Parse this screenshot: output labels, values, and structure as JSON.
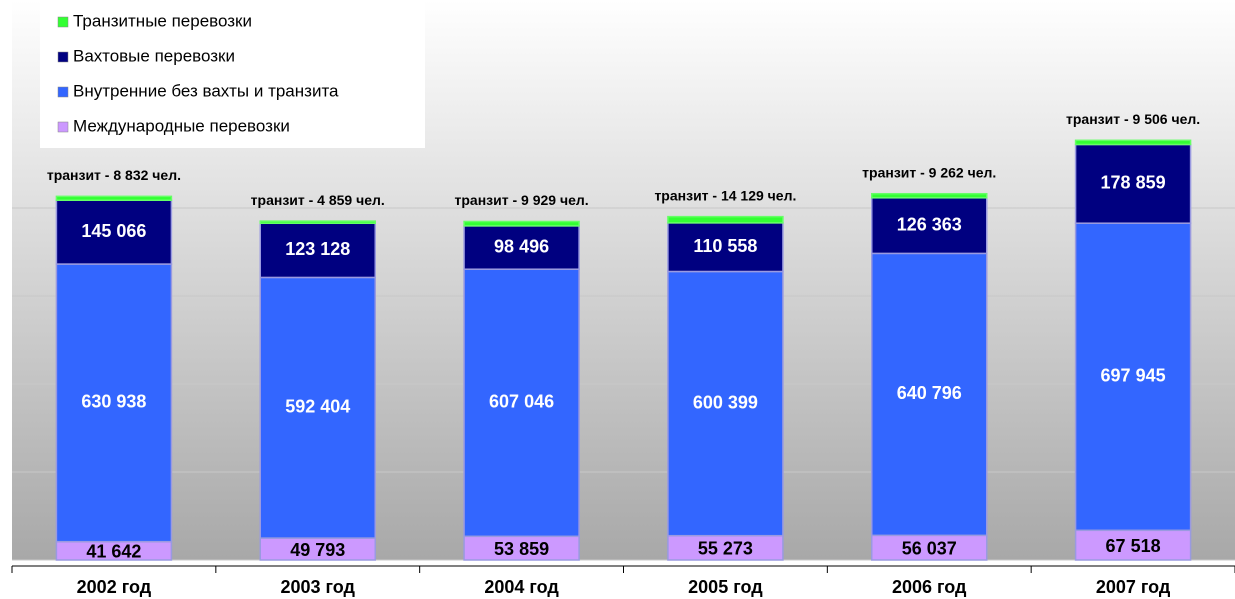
{
  "chart_data": {
    "type": "stacked_bar",
    "categories": [
      "2002 год",
      "2003 год",
      "2004 год",
      "2005 год",
      "2006 год",
      "2007 год"
    ],
    "series": [
      {
        "name": "Международные перевозки",
        "color": "#cc99ff",
        "values": [
          41642,
          49793,
          53859,
          55273,
          56037,
          67518
        ],
        "value_labels": [
          "41 642",
          "49 793",
          "53 859",
          "55 273",
          "56 037",
          "67 518"
        ]
      },
      {
        "name": "Внутренние без вахты и транзита",
        "color": "#3366ff",
        "values": [
          630938,
          592404,
          607046,
          600399,
          640796,
          697945
        ],
        "value_labels": [
          "630 938",
          "592 404",
          "607 046",
          "600 399",
          "640 796",
          "697 945"
        ]
      },
      {
        "name": "Вахтовые перевозки",
        "color": "#000080",
        "values": [
          145066,
          123128,
          98496,
          110558,
          126363,
          178859
        ],
        "value_labels": [
          "145 066",
          "123 128",
          "98 496",
          "110 558",
          "126 363",
          "178 859"
        ]
      },
      {
        "name": "Транзитные перевозки",
        "color": "#33ff33",
        "values": [
          8832,
          4859,
          9929,
          14129,
          9262,
          9506
        ],
        "value_labels": [
          "транзит - 8 832 чел.",
          "транзит - 4 859 чел.",
          "транзит - 9 929 чел.",
          "транзит - 14 129 чел.",
          "транзит - 9 262 чел.",
          "транзит - 9 506 чел."
        ]
      }
    ],
    "ylim": [
      0,
      1000000
    ],
    "yticks": [
      0,
      200000,
      400000,
      600000,
      800000
    ],
    "grid": true
  }
}
